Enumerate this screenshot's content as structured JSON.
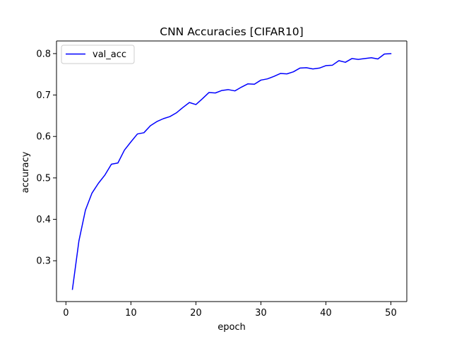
{
  "chart_data": {
    "type": "line",
    "title": "CNN Accuracies [CIFAR10]",
    "xlabel": "epoch",
    "ylabel": "accuracy",
    "xlim": [
      -1.45,
      52.45
    ],
    "ylim": [
      0.2015,
      0.8305
    ],
    "xticks": [
      0,
      10,
      20,
      30,
      40,
      50
    ],
    "yticks": [
      0.3,
      0.4,
      0.5,
      0.6,
      0.7,
      0.8
    ],
    "ytick_labels": [
      "0.3",
      "0.4",
      "0.5",
      "0.6",
      "0.7",
      "0.8"
    ],
    "grid": false,
    "legend_position": "upper-left",
    "series": [
      {
        "name": "val_acc",
        "color": "#0000ff",
        "x": [
          1,
          2,
          3,
          4,
          5,
          6,
          7,
          8,
          9,
          10,
          11,
          12,
          13,
          14,
          15,
          16,
          17,
          18,
          19,
          20,
          21,
          22,
          23,
          24,
          25,
          26,
          27,
          28,
          29,
          30,
          31,
          32,
          33,
          34,
          35,
          36,
          37,
          38,
          39,
          40,
          41,
          42,
          43,
          44,
          45,
          46,
          47,
          48,
          49,
          50
        ],
        "values": [
          0.231,
          0.348,
          0.422,
          0.463,
          0.487,
          0.507,
          0.533,
          0.536,
          0.567,
          0.587,
          0.606,
          0.609,
          0.626,
          0.636,
          0.643,
          0.648,
          0.657,
          0.67,
          0.682,
          0.677,
          0.691,
          0.706,
          0.705,
          0.711,
          0.713,
          0.71,
          0.719,
          0.727,
          0.726,
          0.736,
          0.739,
          0.745,
          0.752,
          0.751,
          0.756,
          0.765,
          0.766,
          0.763,
          0.765,
          0.771,
          0.772,
          0.783,
          0.779,
          0.788,
          0.786,
          0.788,
          0.79,
          0.787,
          0.799,
          0.8
        ]
      }
    ]
  }
}
